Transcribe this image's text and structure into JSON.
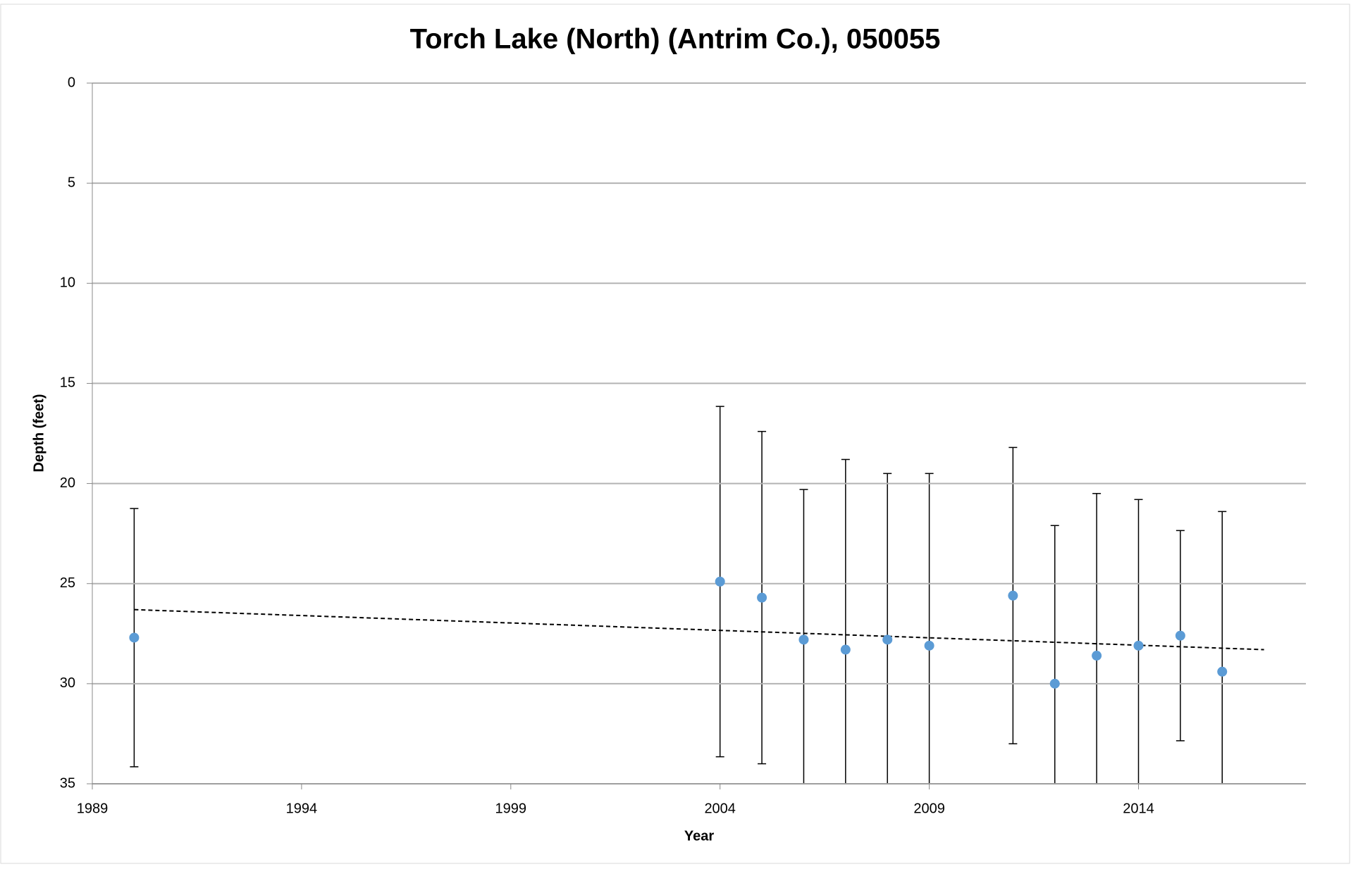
{
  "chart_data": {
    "type": "scatter",
    "title": "Torch Lake (North) (Antrim Co.), 050055",
    "x_label": "Year",
    "y_label": "Depth (feet)",
    "series": [
      {
        "color": "#5b9bd5",
        "x": [
          1990,
          2004,
          2005,
          2006,
          2007,
          2008,
          2009,
          2011,
          2012,
          2013,
          2014,
          2015,
          2016
        ],
        "values": [
          27.7,
          24.9,
          25.7,
          27.8,
          28.3,
          27.8,
          28.1,
          25.6,
          30.0,
          28.6,
          28.1,
          27.6,
          29.4
        ],
        "errors": [
          6.45,
          8.75,
          8.3,
          7.5,
          9.5,
          8.3,
          8.6,
          7.4,
          7.9,
          8.1,
          7.3,
          5.25,
          8.0
        ]
      }
    ],
    "trendline": {
      "color": "#000000",
      "x": [
        1990,
        2017
      ],
      "values": [
        26.3,
        28.3
      ]
    },
    "xlim": [
      1989,
      2018
    ],
    "xticks": [
      1989,
      1994,
      1999,
      2004,
      2009,
      2014
    ],
    "ylim": [
      0,
      35
    ],
    "yticks": [
      0,
      5,
      10,
      15,
      20,
      25,
      30,
      35
    ],
    "y_inverted": true,
    "grid": true
  }
}
